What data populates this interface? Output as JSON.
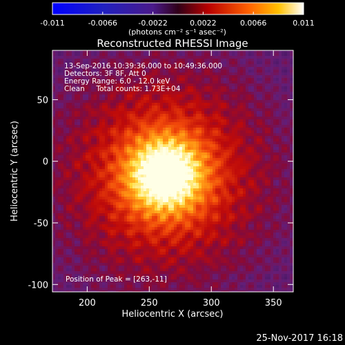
{
  "chart_data": {
    "type": "heatmap",
    "title": "Reconstructed RHESSI Image",
    "xlabel": "Heliocentric X (arcsec)",
    "ylabel": "Heliocentric Y (arcsec)",
    "xlim": [
      172,
      366
    ],
    "ylim": [
      -106,
      90
    ],
    "xticks": [
      200,
      250,
      300,
      350
    ],
    "yticks": [
      -100,
      -50,
      0,
      50
    ],
    "peak": [
      263,
      -11
    ],
    "colorbar": {
      "ticks": [
        "-0.011",
        "-0.0066",
        "-0.0022",
        "0.0022",
        "0.0066",
        "0.011"
      ],
      "tick_values": [
        -0.011,
        -0.0066,
        -0.0022,
        0.0022,
        0.0066,
        0.011
      ],
      "range": [
        -0.011,
        0.011
      ],
      "unit_label": "(photons cm⁻² s⁻¹ asec⁻²)"
    },
    "annotations": [
      "13-Sep-2016 10:39:36.000 to 10:49:36.000",
      "Detectors: 3F 8F, Att 0",
      "Energy Range: 6.0 - 12.0 keV",
      "Clean     Total counts: 1.73E+04"
    ],
    "peak_label": "Position of Peak = [263,-11]"
  },
  "footer": {
    "date": "25-Nov-2017 16:18"
  },
  "colors": {
    "background": "#000000",
    "axis": "#ffffff"
  }
}
